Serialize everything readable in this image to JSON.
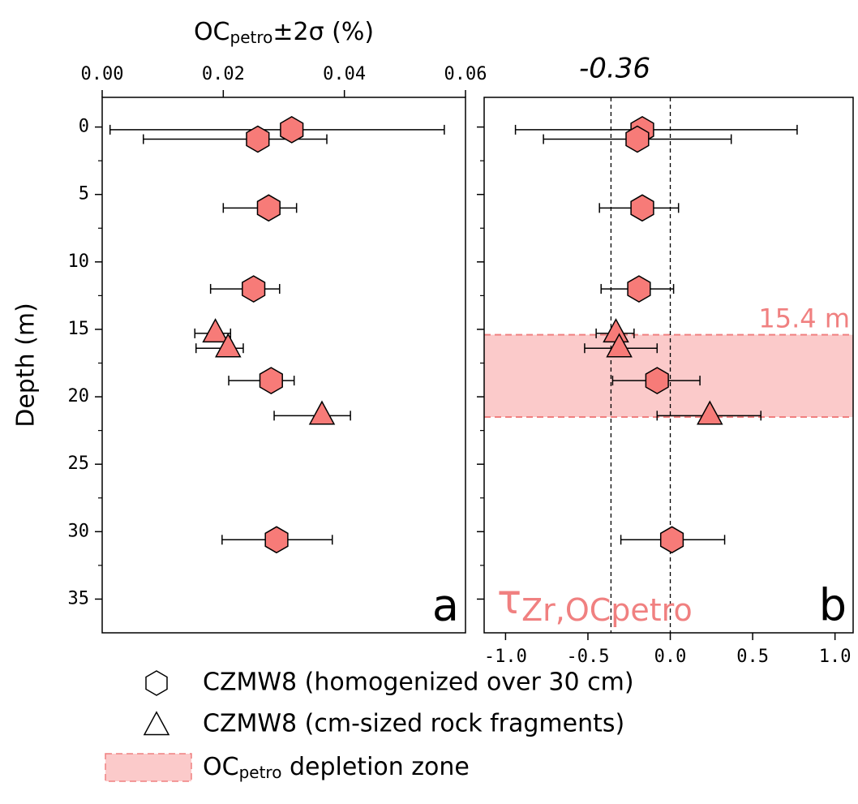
{
  "chart_data": [
    {
      "type": "scatter",
      "xlabel_parts": [
        "OC",
        "petro",
        "±2σ (%)"
      ],
      "ylabel": "Depth (m)",
      "panel_label": "a",
      "x_axis_position": "top",
      "xlim": [
        0,
        0.06
      ],
      "xticks": [
        {
          "value": 0,
          "label": "0.00"
        },
        {
          "value": 0.02,
          "label": "0.02"
        },
        {
          "value": 0.04,
          "label": "0.04"
        },
        {
          "value": 0.06,
          "label": "0.06"
        }
      ],
      "ylim": [
        37.5,
        -2.2
      ],
      "yticks": [
        0,
        5,
        10,
        15,
        20,
        25,
        30,
        35
      ],
      "yminorticks": [
        2.5,
        7.5,
        12.5,
        17.5,
        22.5,
        27.5,
        32.5
      ],
      "series": [
        {
          "name": "CZMW8 (homogenized over 30 cm)",
          "marker": "hexagon",
          "color": "#f77b78",
          "x": [
            0.0313,
            0.0257,
            0.0275,
            0.025,
            0.0279,
            0.0288
          ],
          "y": [
            0.2,
            0.9,
            6.0,
            12.0,
            18.8,
            30.6
          ],
          "x_lower": [
            0.0013,
            0.0068,
            0.02,
            0.0179,
            0.0209,
            0.0198
          ],
          "x_upper": [
            0.0565,
            0.0371,
            0.0321,
            0.0293,
            0.0317,
            0.038
          ]
        },
        {
          "name": "CZMW8 (cm-sized rock fragments)",
          "marker": "triangle",
          "color": "#f77b78",
          "x": [
            0.0187,
            0.0208,
            0.0363
          ],
          "y": [
            15.3,
            16.4,
            21.4
          ],
          "x_lower": [
            0.0153,
            0.0155,
            0.0284
          ],
          "x_upper": [
            0.0212,
            0.0233,
            0.041
          ]
        }
      ]
    },
    {
      "type": "scatter",
      "title": "-0.36",
      "panel_label": "b",
      "annotation_parts": [
        "τ",
        "Zr,OCpetro"
      ],
      "annotation_color": "#f08080",
      "x_axis_position": "bottom",
      "xlim": [
        -1.13,
        1.11
      ],
      "xticks": [
        {
          "value": -1,
          "label": "-1.0"
        },
        {
          "value": -0.5,
          "label": "-0.5"
        },
        {
          "value": 0,
          "label": "0.0"
        },
        {
          "value": 0.5,
          "label": "0.5"
        },
        {
          "value": 1,
          "label": "1.0"
        }
      ],
      "vlines": [
        -0.36,
        0
      ],
      "ylim": [
        37.5,
        -2.2
      ],
      "yticks": [
        0,
        5,
        10,
        15,
        20,
        25,
        30,
        35
      ],
      "yminorticks": [
        2.5,
        7.5,
        12.5,
        17.5,
        22.5,
        27.5,
        32.5
      ],
      "zone": {
        "y_range": [
          15.4,
          21.5
        ],
        "label": "15.4 m",
        "fill": "#fbcaca",
        "edge": "#f08080",
        "legend_parts": [
          "OC",
          "petro",
          " depletion zone"
        ]
      },
      "series": [
        {
          "marker": "hexagon",
          "color": "#f77b78",
          "x": [
            -0.17,
            -0.2,
            -0.17,
            -0.19,
            -0.08,
            0.01
          ],
          "y": [
            0.2,
            0.9,
            6.0,
            12.0,
            18.8,
            30.6
          ],
          "x_lower": [
            -0.94,
            -0.77,
            -0.43,
            -0.42,
            -0.35,
            -0.3
          ],
          "x_upper": [
            0.77,
            0.37,
            0.05,
            0.02,
            0.18,
            0.33
          ]
        },
        {
          "marker": "triangle",
          "color": "#f77b78",
          "x": [
            -0.33,
            -0.31,
            0.24
          ],
          "y": [
            15.3,
            16.4,
            21.4
          ],
          "x_lower": [
            -0.45,
            -0.52,
            -0.08
          ],
          "x_upper": [
            -0.22,
            -0.08,
            0.55
          ]
        }
      ]
    }
  ]
}
